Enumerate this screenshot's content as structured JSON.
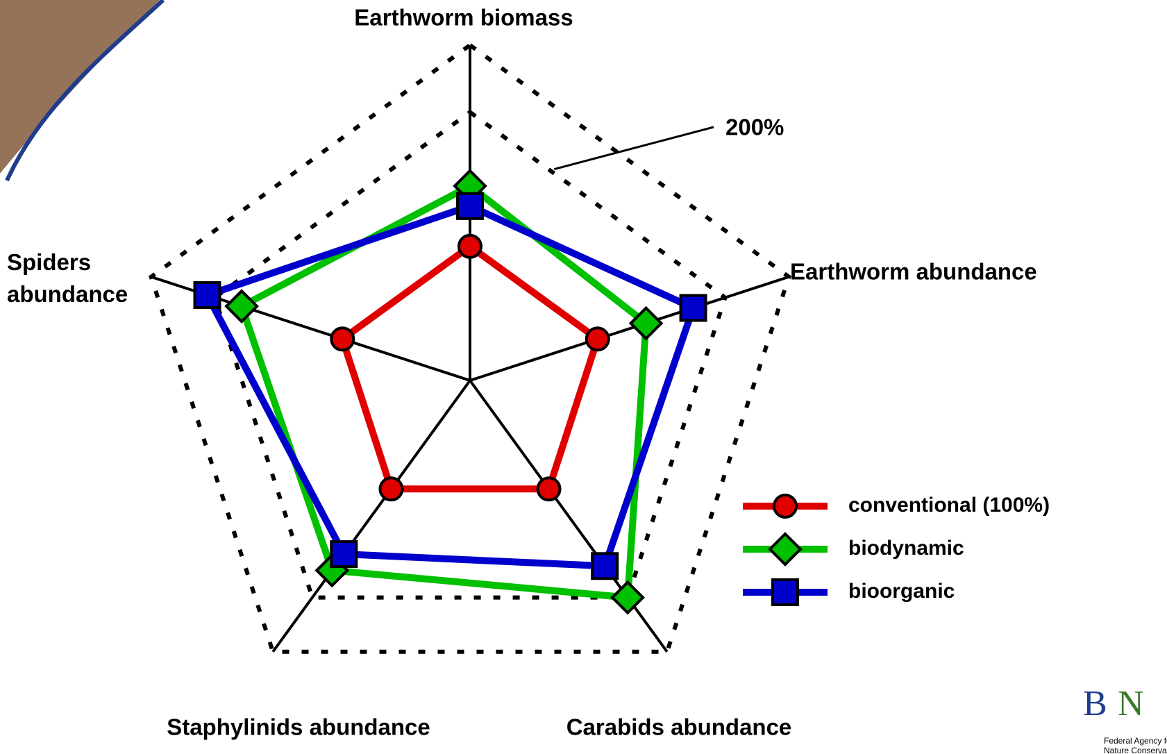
{
  "chart_data": {
    "type": "radar",
    "categories": [
      "Earthworm biomass",
      "Earthworm abundance",
      "Carabids abundance",
      "Staphylinids abundance",
      "Spiders abundance"
    ],
    "rlim": [
      0,
      250
    ],
    "rings": [
      {
        "value": 200,
        "label": "200%"
      },
      250
    ],
    "series": [
      {
        "name": "conventional (100%)",
        "color": "#e00000",
        "marker": "circle",
        "values": [
          100,
          100,
          100,
          100,
          100
        ]
      },
      {
        "name": "biodynamic",
        "color": "#00c000",
        "marker": "diamond",
        "values": [
          145,
          138,
          200,
          175,
          179
        ]
      },
      {
        "name": "bioorganic",
        "color": "#0000cc",
        "marker": "square",
        "values": [
          130,
          175,
          171,
          160,
          206
        ]
      }
    ]
  }
}
